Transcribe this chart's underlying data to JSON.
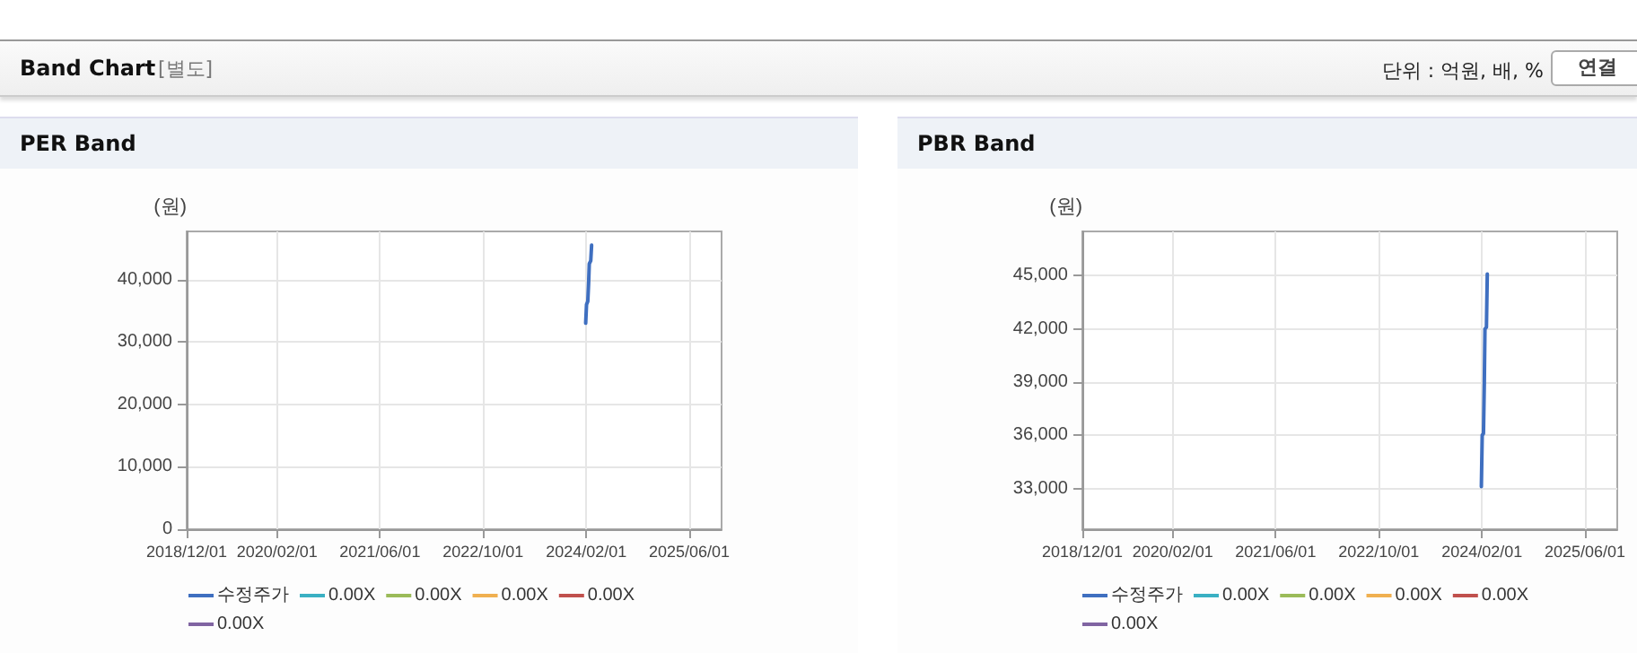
{
  "chart_data": [
    {
      "type": "line",
      "title": "PER Band",
      "ylabel": "(원)",
      "annotations": [
        "Band Chart",
        "[별도]",
        "단위 : 억원, 배, %",
        "연결"
      ],
      "xlim": [
        "2018-12-01",
        "2025-11-01"
      ],
      "xticks": [
        {
          "value": "2018-12-01",
          "label": "2018/12/01"
        },
        {
          "value": "2020-02-01",
          "label": "2020/02/01"
        },
        {
          "value": "2021-06-01",
          "label": "2021/06/01"
        },
        {
          "value": "2022-10-01",
          "label": "2022/10/01"
        },
        {
          "value": "2024-02-01",
          "label": "2024/02/01"
        },
        {
          "value": "2025-06-01",
          "label": "2025/06/01"
        }
      ],
      "ylim": [
        0,
        47700
      ],
      "yticks": [
        0,
        {
          "value": 10000,
          "label": "10,000"
        },
        {
          "value": 20000,
          "label": "20,000"
        },
        {
          "value": 30000,
          "label": "30,000"
        },
        {
          "value": 40000,
          "label": "40,000"
        }
      ],
      "grid": true,
      "legend": "bottom",
      "marker": "none",
      "series": [
        {
          "name": "수정주가",
          "color": "#3f6fc0",
          "x": [
            "2024-01-29",
            "2024-02-01",
            "2024-02-02",
            "2024-02-08",
            "2024-02-12",
            "2024-02-15",
            "2024-02-22",
            "2024-02-26"
          ],
          "values": [
            33000,
            33000,
            36000,
            36500,
            39500,
            42500,
            43000,
            45500
          ]
        },
        {
          "name": "0.00X",
          "color": "#3ab0c3"
        },
        {
          "name": "0.00X",
          "color": "#9bbb59"
        },
        {
          "name": "0.00X",
          "color": "#f0b050"
        },
        {
          "name": "0.00X",
          "color": "#c0504d"
        },
        {
          "name": "0.00X",
          "color": "#8064a2"
        }
      ]
    },
    {
      "type": "line",
      "title": "PBR Band",
      "ylabel": "(원)",
      "xlim": [
        "2018-12-01",
        "2025-11-01"
      ],
      "xticks": [
        {
          "value": "2018-12-01",
          "label": "2018/12/01"
        },
        {
          "value": "2020-02-01",
          "label": "2020/02/01"
        },
        {
          "value": "2021-06-01",
          "label": "2021/06/01"
        },
        {
          "value": "2022-10-01",
          "label": "2022/10/01"
        },
        {
          "value": "2024-02-01",
          "label": "2024/02/01"
        },
        {
          "value": "2025-06-01",
          "label": "2025/06/01"
        }
      ],
      "ylim": [
        30700,
        47500
      ],
      "yticks": [
        {
          "value": 33000,
          "label": "33,000"
        },
        {
          "value": 36000,
          "label": "36,000"
        },
        {
          "value": 39000,
          "label": "39,000"
        },
        {
          "value": 42000,
          "label": "42,000"
        },
        {
          "value": 45000,
          "label": "45,000"
        }
      ],
      "grid": true,
      "legend": "bottom",
      "marker": "none",
      "series": [
        {
          "name": "수정주가",
          "color": "#3f6fc0",
          "x": [
            "2024-01-29",
            "2024-02-01",
            "2024-02-02",
            "2024-02-08",
            "2024-02-12",
            "2024-02-15",
            "2024-02-22",
            "2024-02-26"
          ],
          "values": [
            33100,
            33100,
            36000,
            36100,
            39000,
            42000,
            42100,
            45100
          ]
        },
        {
          "name": "0.00X",
          "color": "#3ab0c3"
        },
        {
          "name": "0.00X",
          "color": "#9bbb59"
        },
        {
          "name": "0.00X",
          "color": "#f0b050"
        },
        {
          "name": "0.00X",
          "color": "#c0504d"
        },
        {
          "name": "0.00X",
          "color": "#8064a2"
        }
      ]
    }
  ]
}
